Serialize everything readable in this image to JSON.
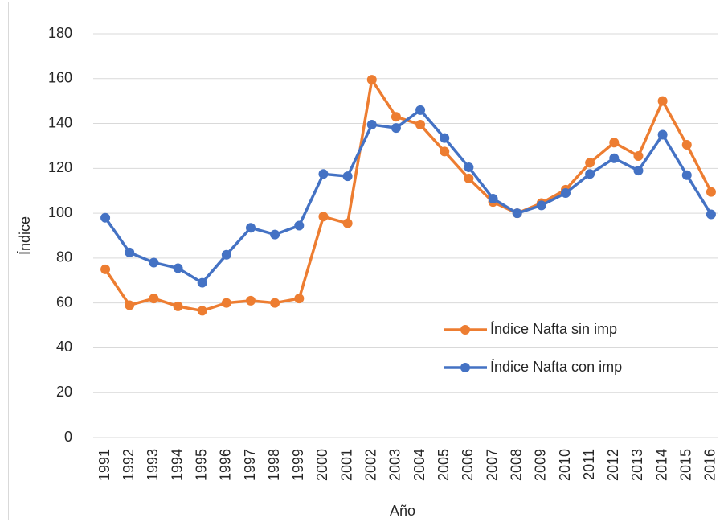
{
  "chart_data": {
    "type": "line",
    "x_label": "Año",
    "y_label": "Índice",
    "categories": [
      "1991",
      "1992",
      "1993",
      "1994",
      "1995",
      "1996",
      "1997",
      "1998",
      "1999",
      "2000",
      "2001",
      "2002",
      "2003",
      "2004",
      "2005",
      "2006",
      "2007",
      "2008",
      "2009",
      "2010",
      "2011",
      "2012",
      "2013",
      "2014",
      "2015",
      "2016"
    ],
    "series": [
      {
        "name": "Índice Nafta sin imp",
        "color": "#ed7d31",
        "values": [
          75,
          59,
          62,
          58.5,
          56.5,
          60,
          61,
          60,
          62,
          98.5,
          95.5,
          159.5,
          143,
          139.5,
          127.5,
          115.5,
          105,
          100,
          104.5,
          110.5,
          122.5,
          131.5,
          125.5,
          150,
          130.5,
          109.5
        ]
      },
      {
        "name": "Índice Nafta con imp",
        "color": "#4472c4",
        "values": [
          98,
          82.5,
          78,
          75.5,
          69,
          81.5,
          93.5,
          90.5,
          94.5,
          117.5,
          116.5,
          139.5,
          138,
          146,
          133.5,
          120.5,
          106.5,
          100,
          103.5,
          109,
          117.5,
          124.5,
          119,
          135,
          117,
          99.5
        ]
      }
    ],
    "ylim": [
      0,
      180
    ],
    "yticks": [
      0,
      20,
      40,
      60,
      80,
      100,
      120,
      140,
      160,
      180
    ],
    "grid": true,
    "legend": "right",
    "markers": true
  }
}
